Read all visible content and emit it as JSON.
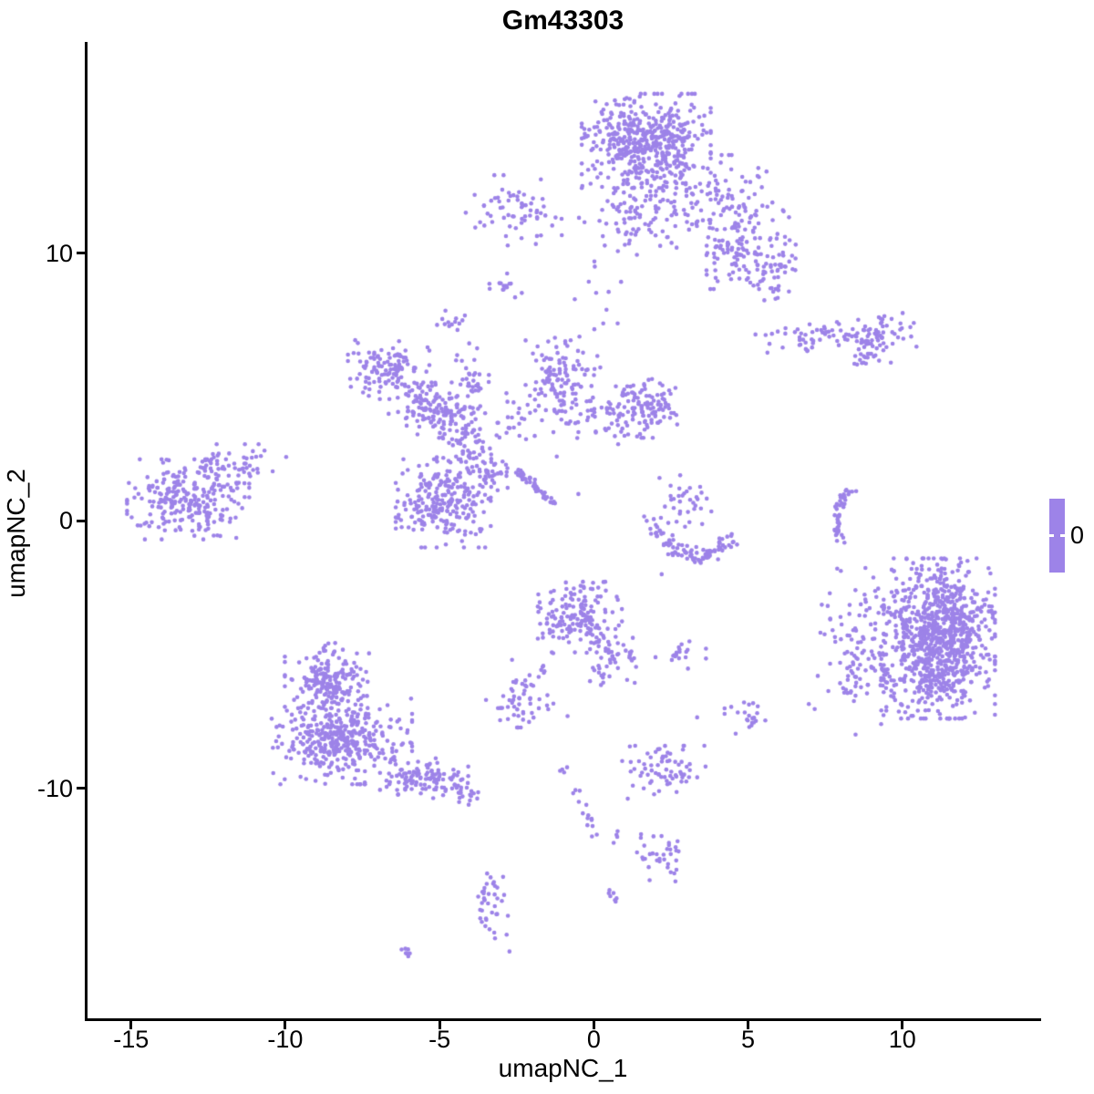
{
  "chart_data": {
    "type": "scatter",
    "title": "Gm43303",
    "xlabel": "umapNC_1",
    "ylabel": "umapNC_2",
    "xlim": [
      -16.5,
      14.5
    ],
    "ylim": [
      -18.6,
      17.9
    ],
    "xticks": [
      "-15",
      "-10",
      "-5",
      "0",
      "5",
      "10"
    ],
    "xtick_values": [
      -15,
      -10,
      -5,
      0,
      5,
      10
    ],
    "yticks": [
      "10",
      "0",
      "-10"
    ],
    "ytick_values": [
      10,
      0,
      -10
    ],
    "grid": false,
    "point_color": "#9D83E8",
    "point_radius": 2.3,
    "legend": {
      "label": "0",
      "color": "#9D83E8",
      "position": "right"
    },
    "clusters": [
      {
        "name": "top-main-core",
        "type": "blob",
        "cx": 1.7,
        "cy": 14.2,
        "sx": 0.95,
        "sy": 0.8,
        "n": 480
      },
      {
        "name": "top-main-lower",
        "type": "blob",
        "cx": 1.5,
        "cy": 11.7,
        "sx": 0.9,
        "sy": 0.8,
        "n": 110
      },
      {
        "name": "top-right-arm-1",
        "type": "blob",
        "cx": 4.15,
        "cy": 11.8,
        "sx": 0.9,
        "sy": 0.85,
        "n": 110
      },
      {
        "name": "top-right-arm-2",
        "type": "blob",
        "cx": 4.9,
        "cy": 10.2,
        "sx": 0.75,
        "sy": 0.7,
        "n": 90
      },
      {
        "name": "top-right-arm-3",
        "type": "blob",
        "cx": 5.55,
        "cy": 9.2,
        "sx": 0.55,
        "sy": 0.5,
        "n": 55
      },
      {
        "name": "top-left-small",
        "type": "blob",
        "cx": -2.5,
        "cy": 11.6,
        "sx": 0.75,
        "sy": 0.6,
        "n": 65
      },
      {
        "name": "top-left-dot",
        "type": "blob",
        "cx": -2.95,
        "cy": 8.8,
        "sx": 0.28,
        "sy": 0.25,
        "n": 14
      },
      {
        "name": "upper-small-dot",
        "type": "blob",
        "cx": -4.6,
        "cy": 7.45,
        "sx": 0.25,
        "sy": 0.25,
        "n": 13
      },
      {
        "name": "below-top-sparse",
        "type": "blob",
        "cx": 0.3,
        "cy": 8.7,
        "sx": 0.6,
        "sy": 0.6,
        "n": 10
      },
      {
        "name": "right-streak-band",
        "type": "blob",
        "cx": 7.55,
        "cy": 6.9,
        "sx": 1.05,
        "sy": 0.28,
        "n": 70
      },
      {
        "name": "right-streak-blob",
        "type": "blob",
        "cx": 9.25,
        "cy": 6.9,
        "sx": 0.55,
        "sy": 0.45,
        "n": 55
      },
      {
        "name": "right-streak-dash",
        "type": "line",
        "x1": 8.4,
        "y1": 5.8,
        "x2": 9.1,
        "y2": 6.3,
        "jx": 0.08,
        "jy": 0.08,
        "n": 11
      },
      {
        "name": "midleft-cluster",
        "type": "blob",
        "cx": -6.65,
        "cy": 5.65,
        "sx": 0.6,
        "sy": 0.5,
        "n": 120
      },
      {
        "name": "midleft-ext",
        "type": "blob",
        "cx": -5.4,
        "cy": 4.4,
        "sx": 0.5,
        "sy": 0.4,
        "n": 35
      },
      {
        "name": "web-top-blob",
        "type": "blob",
        "cx": -1.0,
        "cy": 5.4,
        "sx": 0.55,
        "sy": 0.8,
        "n": 120
      },
      {
        "name": "web-right-blob",
        "type": "blob",
        "cx": 1.6,
        "cy": 4.2,
        "sx": 0.55,
        "sy": 0.5,
        "n": 115
      },
      {
        "name": "web-mid-sparse",
        "type": "blob",
        "cx": 0.38,
        "cy": 3.84,
        "sx": 0.6,
        "sy": 0.45,
        "n": 40
      },
      {
        "name": "web-x-node",
        "type": "blob",
        "cx": -4.67,
        "cy": 3.9,
        "sx": 0.55,
        "sy": 0.45,
        "n": 70
      },
      {
        "name": "web-x-node2",
        "type": "blob",
        "cx": -4.1,
        "cy": 2.7,
        "sx": 0.45,
        "sy": 0.45,
        "n": 60
      },
      {
        "name": "web-vert-arm",
        "type": "blob",
        "cx": -3.95,
        "cy": 5.0,
        "sx": 0.25,
        "sy": 0.8,
        "n": 35
      },
      {
        "name": "web-left-reach",
        "type": "blob",
        "cx": -5.55,
        "cy": 4.4,
        "sx": 0.5,
        "sy": 0.4,
        "n": 35
      },
      {
        "name": "web-scatter",
        "type": "blob",
        "cx": -2.2,
        "cy": 4.1,
        "sx": 0.7,
        "sy": 0.55,
        "n": 18
      },
      {
        "name": "web-trail",
        "type": "line",
        "x1": -1.8,
        "y1": 4.3,
        "x2": -3.1,
        "y2": 3.1,
        "jx": 0.1,
        "jy": 0.1,
        "n": 12
      },
      {
        "name": "web-big-blob",
        "type": "blob",
        "cx": -4.88,
        "cy": 0.65,
        "sx": 0.7,
        "sy": 0.75,
        "n": 230
      },
      {
        "name": "web-node3",
        "type": "blob",
        "cx": -3.5,
        "cy": 1.7,
        "sx": 0.45,
        "sy": 0.4,
        "n": 45
      },
      {
        "name": "web-streak",
        "type": "line",
        "x1": -2.51,
        "y1": 1.9,
        "x2": -1.24,
        "y2": 0.58,
        "jx": 0.06,
        "jy": 0.06,
        "n": 50
      },
      {
        "name": "farleft-core",
        "type": "blob",
        "cx": -13.15,
        "cy": 0.8,
        "sx": 0.9,
        "sy": 0.68,
        "n": 270
      },
      {
        "name": "farleft-fringe",
        "type": "blob",
        "cx": -11.6,
        "cy": 2.2,
        "sx": 0.74,
        "sy": 0.3,
        "n": 40
      },
      {
        "name": "smile-arc",
        "type": "arc",
        "x1": 1.95,
        "y1": -0.3,
        "xm": 3.25,
        "ym": -1.3,
        "x2": 4.45,
        "y2": -0.5,
        "jx": 0.18,
        "jy": 0.14,
        "n": 95
      },
      {
        "name": "smile-top-blob",
        "type": "blob",
        "cx": 3.15,
        "cy": 0.9,
        "sx": 0.3,
        "sy": 0.3,
        "n": 22
      },
      {
        "name": "smile-scatter",
        "type": "blob",
        "cx": 2.6,
        "cy": 0.15,
        "sx": 0.5,
        "sy": 0.4,
        "n": 14
      },
      {
        "name": "right-crescent",
        "type": "arc",
        "x1": 8.35,
        "y1": 1.2,
        "xm": 7.9,
        "ym": 0.2,
        "x2": 8.1,
        "y2": -0.9,
        "jx": 0.08,
        "jy": 0.1,
        "n": 48
      },
      {
        "name": "right-big-core",
        "type": "blob",
        "cx": 11.2,
        "cy": -4.4,
        "sx": 0.82,
        "sy": 1.36,
        "n": 900
      },
      {
        "name": "right-big-fringe",
        "type": "blob",
        "cx": 8.95,
        "cy": -5.35,
        "sx": 0.9,
        "sy": 1.2,
        "n": 130
      },
      {
        "name": "right-big-top-dots",
        "type": "blob",
        "cx": 8.6,
        "cy": -2.9,
        "sx": 0.55,
        "sy": 0.7,
        "n": 28
      },
      {
        "name": "centerbottom-blob",
        "type": "blob",
        "cx": -0.45,
        "cy": -3.6,
        "sx": 0.62,
        "sy": 0.6,
        "n": 170
      },
      {
        "name": "centerbottom-tail",
        "type": "blob",
        "cx": 0.65,
        "cy": -5.1,
        "sx": 0.4,
        "sy": 0.55,
        "n": 50
      },
      {
        "name": "centerbottom-chain",
        "type": "line",
        "x1": -1.2,
        "y1": -4.9,
        "x2": -2.5,
        "y2": -6.6,
        "jx": 0.09,
        "jy": 0.09,
        "n": 14
      },
      {
        "name": "small-left-blob",
        "type": "blob",
        "cx": -2.45,
        "cy": -6.85,
        "sx": 0.55,
        "sy": 0.4,
        "n": 45
      },
      {
        "name": "small-mid-blob",
        "type": "blob",
        "cx": 2.8,
        "cy": -5.0,
        "sx": 0.38,
        "sy": 0.24,
        "n": 18
      },
      {
        "name": "small-right-blob",
        "type": "blob",
        "cx": 4.9,
        "cy": -7.3,
        "sx": 0.3,
        "sy": 0.3,
        "n": 22
      },
      {
        "name": "bottomleft-top-lobe",
        "type": "blob",
        "cx": -8.65,
        "cy": -6.0,
        "sx": 0.62,
        "sy": 0.65,
        "n": 200
      },
      {
        "name": "bottomleft-body",
        "type": "blob",
        "cx": -8.2,
        "cy": -8.2,
        "sx": 1.05,
        "sy": 0.75,
        "n": 380
      },
      {
        "name": "bottomleft-tail",
        "type": "blob",
        "cx": -5.5,
        "cy": -9.6,
        "sx": 0.65,
        "sy": 0.35,
        "n": 110
      },
      {
        "name": "bottomleft-tip",
        "type": "blob",
        "cx": -4.3,
        "cy": -10.2,
        "sx": 0.3,
        "sy": 0.2,
        "n": 20
      },
      {
        "name": "bottom-blob",
        "type": "blob",
        "cx": 2.35,
        "cy": -9.4,
        "sx": 0.65,
        "sy": 0.45,
        "n": 65
      },
      {
        "name": "bottom-blob-dots",
        "type": "blob",
        "cx": 2.3,
        "cy": -8.7,
        "sx": 0.18,
        "sy": 0.2,
        "n": 6
      },
      {
        "name": "chain-dot",
        "type": "blob",
        "cx": -0.95,
        "cy": -9.25,
        "sx": 0.12,
        "sy": 0.12,
        "n": 4
      },
      {
        "name": "chain-line",
        "type": "line",
        "x1": -0.6,
        "y1": -10.1,
        "x2": 0.0,
        "y2": -11.5,
        "jx": 0.08,
        "jy": 0.08,
        "n": 12
      },
      {
        "name": "chain-dots2",
        "type": "blob",
        "cx": 0.6,
        "cy": -11.8,
        "sx": 0.3,
        "sy": 0.12,
        "n": 6
      },
      {
        "name": "bottom-small-blob",
        "type": "blob",
        "cx": 2.05,
        "cy": -12.6,
        "sx": 0.45,
        "sy": 0.4,
        "n": 35
      },
      {
        "name": "bottom-vert-blob",
        "type": "blob",
        "cx": -3.35,
        "cy": -14.45,
        "sx": 0.28,
        "sy": 0.75,
        "n": 40
      },
      {
        "name": "bottom-dash",
        "type": "line",
        "x1": -6.2,
        "y1": -15.95,
        "x2": -5.85,
        "y2": -16.3,
        "jx": 0.06,
        "jy": 0.06,
        "n": 7
      },
      {
        "name": "bottom-dash2",
        "type": "line",
        "x1": 0.45,
        "y1": -13.8,
        "x2": 0.7,
        "y2": -14.2,
        "jx": 0.06,
        "jy": 0.06,
        "n": 7
      },
      {
        "name": "isolated-dots",
        "type": "dots",
        "pts": [
          [
            2.2,
            -2.0
          ],
          [
            2.0,
            -5.1
          ],
          [
            3.35,
            -7.35
          ],
          [
            -0.85,
            -7.3
          ],
          [
            -2.65,
            -5.2
          ],
          [
            2.8,
            1.7
          ],
          [
            -2.8,
            4.45
          ],
          [
            -1.2,
            2.4
          ],
          [
            2.13,
            1.6
          ],
          [
            -0.5,
            1.0
          ],
          [
            3.1,
            -0.05
          ]
        ]
      }
    ]
  }
}
